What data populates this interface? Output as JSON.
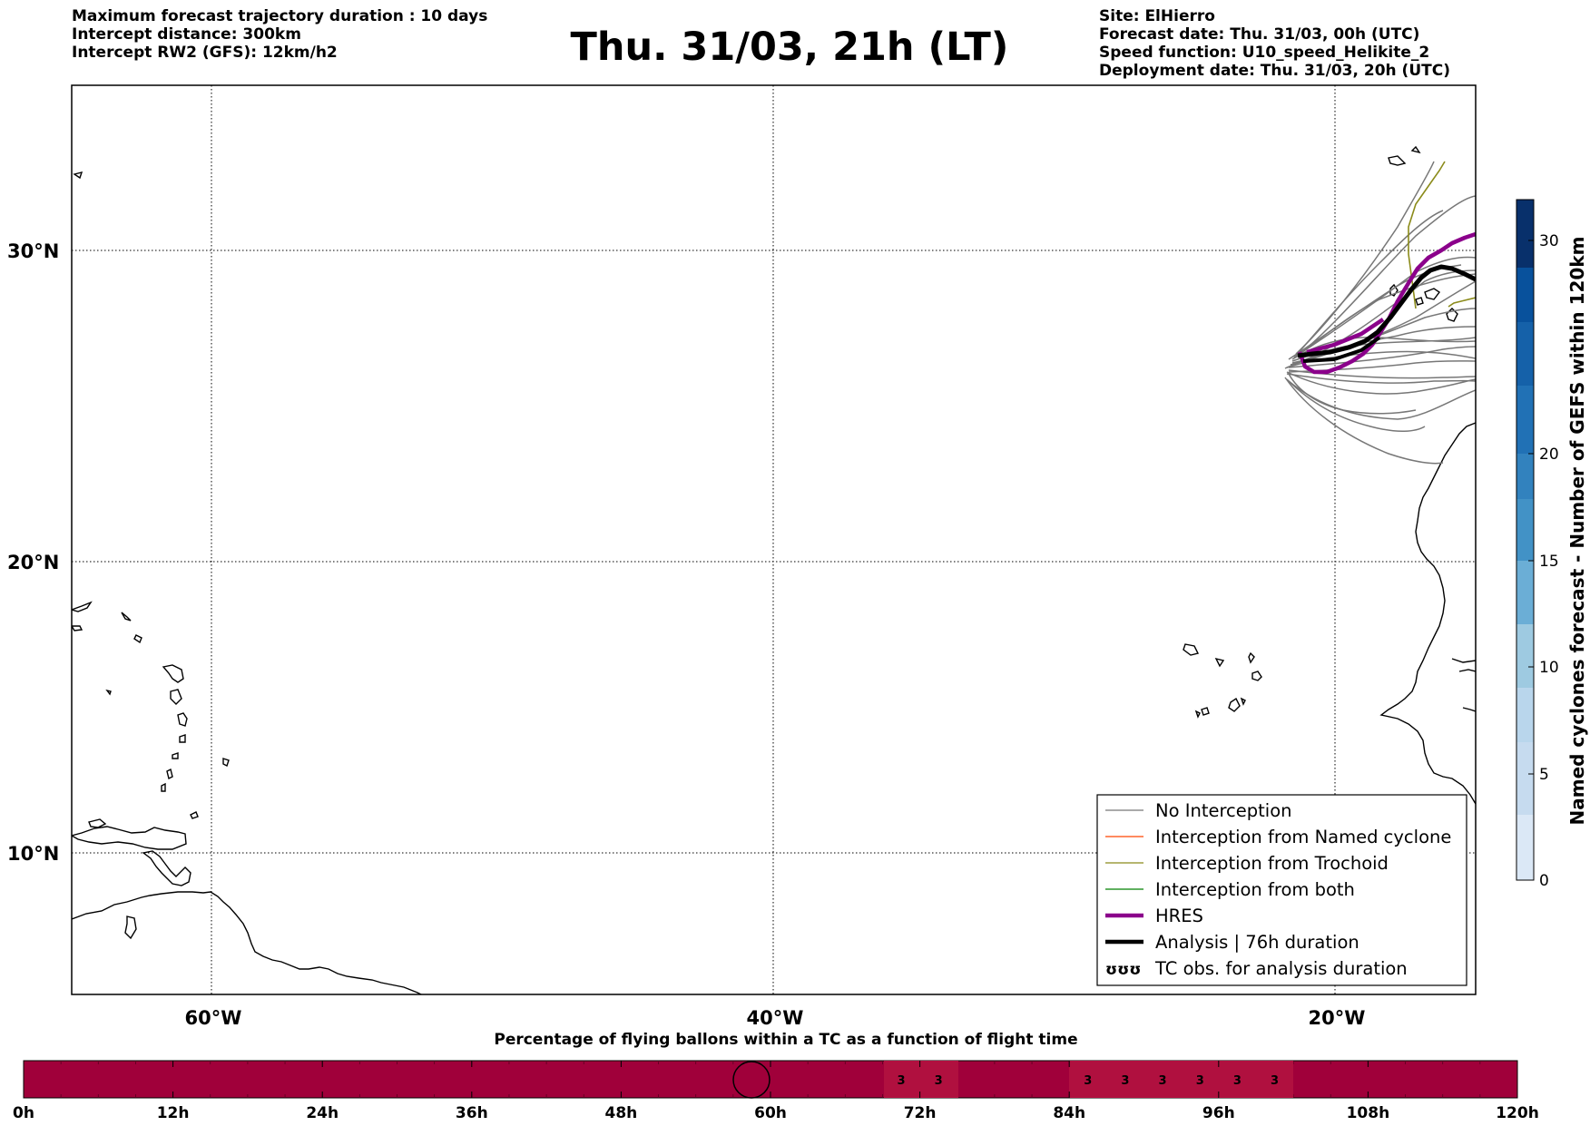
{
  "header": {
    "left": [
      "Maximum forecast trajectory duration : 10 days",
      "Intercept distance: 300km",
      "Intercept RW2 (GFS):  12km/h2"
    ],
    "title": "Thu. 31/03, 21h (LT)",
    "right": [
      "Site: ElHierro",
      "Forecast date: Thu. 31/03, 00h (UTC)",
      "Speed function: U10_speed_Helikite_2",
      "Deployment date: Thu. 31/03, 20h (UTC)"
    ]
  },
  "map": {
    "lat_labels": [
      "30°N",
      "20°N",
      "10°N"
    ],
    "lon_labels": [
      "60°W",
      "40°W",
      "20°W"
    ],
    "colors": {
      "hres": "#8b008b",
      "analysis": "#000000",
      "ensemble": "#777777",
      "trochoid": "#8b8b1a",
      "named": "#ff4500",
      "both": "#008000"
    }
  },
  "legend": {
    "items": [
      {
        "label": "No Interception",
        "color": "#777777",
        "kind": "thin"
      },
      {
        "label": "Interception from Named cyclone",
        "color": "#ff4500",
        "kind": "thin"
      },
      {
        "label": "Interception from Trochoid",
        "color": "#8b8b1a",
        "kind": "thin"
      },
      {
        "label": "Interception from both",
        "color": "#008000",
        "kind": "thin"
      },
      {
        "label": "HRES",
        "color": "#8b008b",
        "kind": "thick"
      },
      {
        "label": "Analysis | 76h duration",
        "color": "#000000",
        "kind": "thick"
      },
      {
        "label": "TC obs. for analysis duration",
        "color": "#000000",
        "kind": "symbol",
        "symbol": "ʊʊʊ"
      }
    ]
  },
  "colorbar": {
    "label": "Named cyclones forecast - Number of GEFS within 120km",
    "ticks": [
      "0",
      "5",
      "10",
      "15",
      "20",
      "30"
    ]
  },
  "timeline": {
    "title": "Percentage of flying ballons within a TC as a function of flight time",
    "ticks": [
      "0h",
      "12h",
      "24h",
      "36h",
      "48h",
      "60h",
      "72h",
      "84h",
      "96h",
      "108h",
      "120h"
    ],
    "bar_color": "#a0003a",
    "markers": [
      "3",
      "3",
      "3",
      "3",
      "3",
      "3",
      "3",
      "3"
    ]
  }
}
